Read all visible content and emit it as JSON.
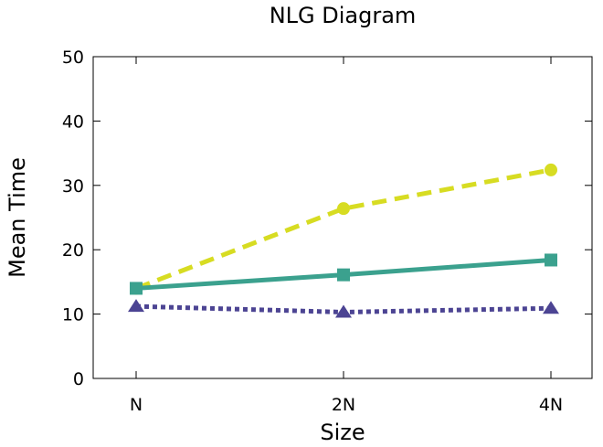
{
  "chart_data": {
    "type": "line",
    "title": "NLG Diagram",
    "xlabel": "Size",
    "ylabel": "Mean Time",
    "categories": [
      "N",
      "2N",
      "4N"
    ],
    "ylim": [
      0,
      50
    ],
    "yticks": [
      0,
      10,
      20,
      30,
      40,
      50
    ],
    "grid": false,
    "legend": "none",
    "series": [
      {
        "values": [
          14.0,
          26.4,
          32.4
        ],
        "color": "#d7dc22",
        "line_style": "dashed",
        "marker": "circle"
      },
      {
        "values": [
          14.0,
          16.1,
          18.4
        ],
        "color": "#3ba18e",
        "line_style": "solid",
        "marker": "square"
      },
      {
        "values": [
          11.2,
          10.3,
          10.9
        ],
        "color": "#4c4493",
        "line_style": "dotted",
        "marker": "triangle"
      }
    ]
  }
}
